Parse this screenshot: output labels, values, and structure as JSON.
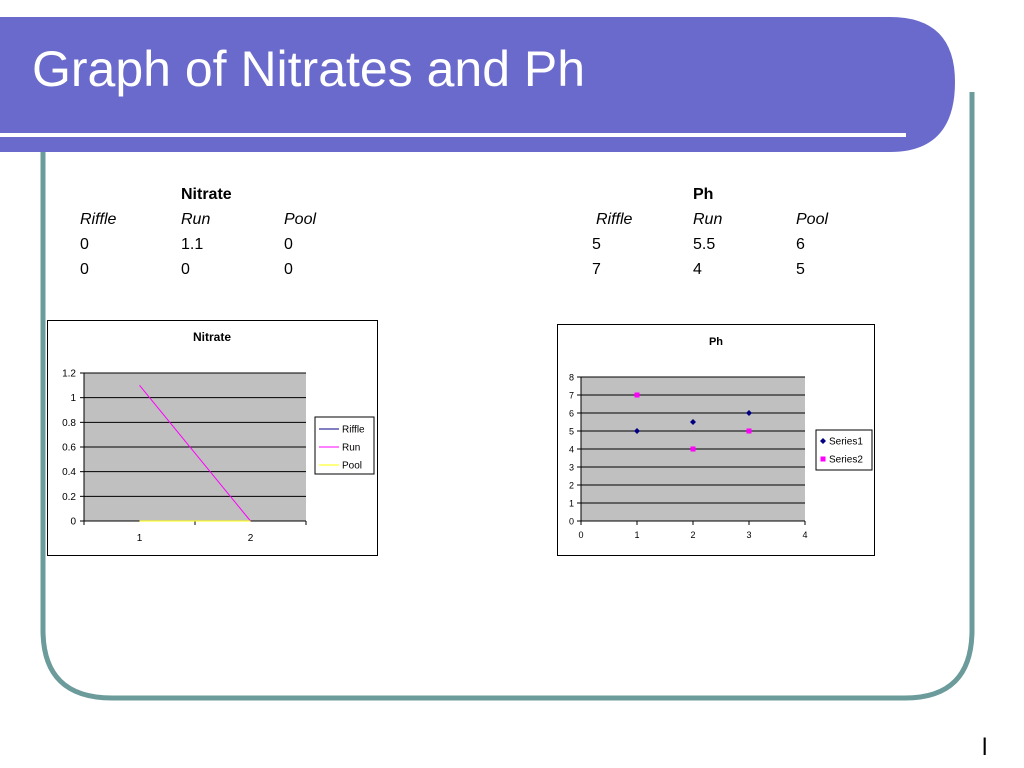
{
  "slide": {
    "title": "Graph of Nitrates and Ph",
    "page_number": "l",
    "colors": {
      "header": "#6a6acc",
      "frame": "#6b9b9b",
      "accent_line": "#ffffff"
    }
  },
  "tables": {
    "nitrate": {
      "title": "Nitrate",
      "headers": [
        "Riffle",
        "Run",
        "Pool"
      ],
      "rows": [
        [
          "0",
          "1.1",
          "0"
        ],
        [
          "0",
          "0",
          "0"
        ]
      ]
    },
    "ph": {
      "title": "Ph",
      "headers": [
        "Riffle",
        "Run",
        "Pool"
      ],
      "rows": [
        [
          "5",
          "5.5",
          "6"
        ],
        [
          "7",
          "4",
          "5"
        ]
      ]
    }
  },
  "chart_data": [
    {
      "type": "line",
      "title": "Nitrate",
      "x": [
        1,
        2
      ],
      "xticks": [
        "1",
        "2"
      ],
      "ylim": [
        0,
        1.2
      ],
      "yticks": [
        0,
        0.2,
        0.4,
        0.6,
        0.8,
        1,
        1.2
      ],
      "ytick_labels": [
        "0",
        "0.2",
        "0.4",
        "0.6",
        "0.8",
        "1",
        "1.2"
      ],
      "grid": true,
      "plot_background": "#c0c0c0",
      "legend": "right",
      "series": [
        {
          "name": "Riffle",
          "values": [
            0,
            0
          ],
          "color": "#000080"
        },
        {
          "name": "Run",
          "values": [
            1.1,
            0
          ],
          "color": "#ff00ff"
        },
        {
          "name": "Pool",
          "values": [
            0,
            0
          ],
          "color": "#ffff00"
        }
      ]
    },
    {
      "type": "scatter",
      "title": "Ph",
      "xlim": [
        0,
        4
      ],
      "xticks": [
        0,
        1,
        2,
        3,
        4
      ],
      "ylim": [
        0,
        8
      ],
      "yticks": [
        0,
        1,
        2,
        3,
        4,
        5,
        6,
        7,
        8
      ],
      "grid": true,
      "plot_background": "#c0c0c0",
      "legend": "right",
      "series": [
        {
          "name": "Series1",
          "marker": "diamond",
          "color": "#000080",
          "points": [
            [
              1,
              5
            ],
            [
              2,
              5.5
            ],
            [
              3,
              6
            ]
          ]
        },
        {
          "name": "Series2",
          "marker": "square",
          "color": "#ff00ff",
          "points": [
            [
              1,
              7
            ],
            [
              2,
              4
            ],
            [
              3,
              5
            ]
          ]
        }
      ]
    }
  ]
}
